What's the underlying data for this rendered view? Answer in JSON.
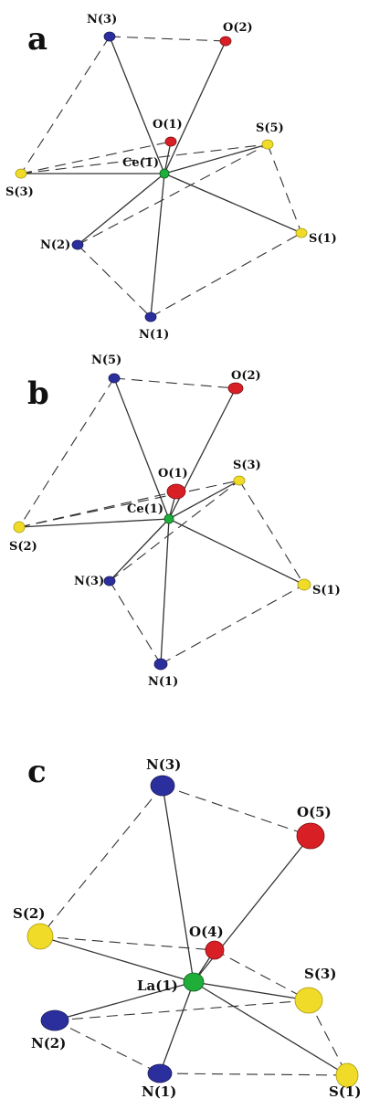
{
  "colors": {
    "N": "#2b2f9e",
    "O": "#d81f26",
    "S": "#f0dc28",
    "metal": "#1fae3a"
  },
  "panels": [
    {
      "letter": "a",
      "center": "Ce(1)",
      "atoms": {
        "n3": "N(3)",
        "o2": "O(2)",
        "o1": "O(1)",
        "s5": "S(5)",
        "ce": "Ce(1)",
        "s3": "S(3)",
        "s1": "S(1)",
        "n2": "N(2)",
        "n1": "N(1)"
      }
    },
    {
      "letter": "b",
      "center": "Ce(1)",
      "atoms": {
        "n5": "N(5)",
        "o2": "O(2)",
        "o1": "O(1)",
        "s3": "S(3)",
        "ce": "Ce(1)",
        "s2": "S(2)",
        "s1": "S(1)",
        "n3": "N(3)",
        "n1": "N(1)"
      }
    },
    {
      "letter": "c",
      "center": "La(1)",
      "atoms": {
        "n3": "N(3)",
        "o5": "O(5)",
        "s2": "S(2)",
        "o4": "O(4)",
        "la": "La(1)",
        "s3": "S(3)",
        "n2": "N(2)",
        "n1": "N(1)",
        "s1": "S(1)"
      }
    }
  ]
}
